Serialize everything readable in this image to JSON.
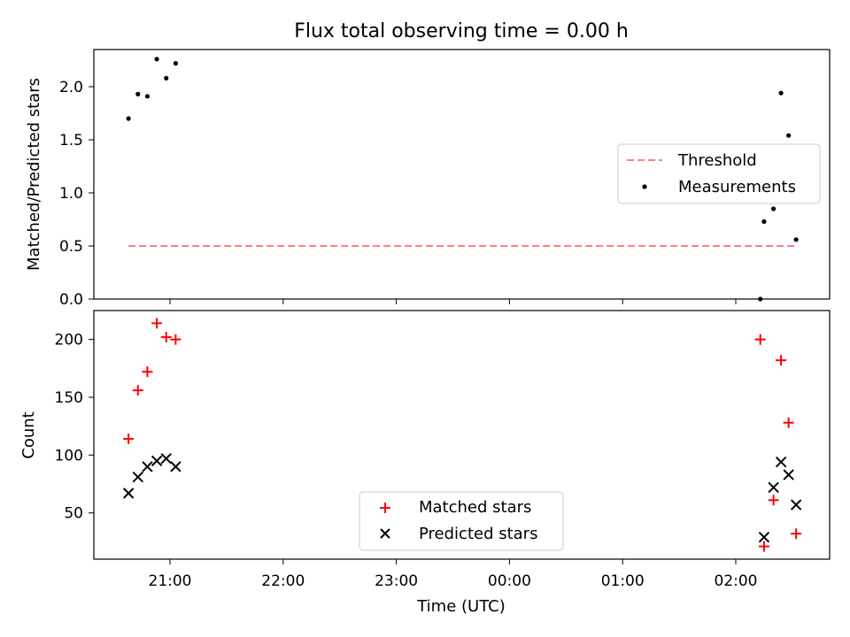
{
  "chart_data": [
    {
      "type": "scatter",
      "title": "Flux total observing time = 0.00 h",
      "ylabel": "Matched/Predicted stars",
      "xlabel": "",
      "ylim": [
        0,
        2.35
      ],
      "yticks": [
        "0.0",
        "0.5",
        "1.0",
        "1.5",
        "2.0"
      ],
      "ytick_values": [
        0,
        0.5,
        1.0,
        1.5,
        2.0
      ],
      "legend_position": "center-right",
      "series": [
        {
          "name": "Threshold",
          "style": "dashed-line",
          "color": "#ff7f7f",
          "x": [
            "20:38",
            "02:32"
          ],
          "y": [
            0.5,
            0.5
          ]
        },
        {
          "name": "Measurements",
          "style": "dot",
          "color": "#000000",
          "x": [
            "20:38",
            "20:43",
            "20:48",
            "20:53",
            "20:58",
            "21:03",
            "02:13",
            "02:15",
            "02:20",
            "02:24",
            "02:28",
            "02:32"
          ],
          "y": [
            1.7,
            1.93,
            1.91,
            2.26,
            2.08,
            2.22,
            0.0,
            0.73,
            0.85,
            1.94,
            1.54,
            0.56
          ]
        }
      ]
    },
    {
      "type": "scatter",
      "xlabel": "Time (UTC)",
      "ylabel": "Count",
      "ylim": [
        10,
        225
      ],
      "yticks": [
        "50",
        "100",
        "150",
        "200"
      ],
      "ytick_values": [
        50,
        100,
        150,
        200
      ],
      "xticks": [
        "21:00",
        "22:00",
        "23:00",
        "00:00",
        "01:00",
        "02:00"
      ],
      "legend_position": "lower-center",
      "series": [
        {
          "name": "Matched stars",
          "marker": "+",
          "color": "#ff0000",
          "x": [
            "20:38",
            "20:43",
            "20:48",
            "20:53",
            "20:58",
            "21:03",
            "02:13",
            "02:15",
            "02:20",
            "02:24",
            "02:28",
            "02:32"
          ],
          "y": [
            114,
            156,
            172,
            214,
            202,
            200,
            200,
            21,
            61,
            182,
            128,
            32
          ]
        },
        {
          "name": "Predicted stars",
          "marker": "x",
          "color": "#000000",
          "x": [
            "20:38",
            "20:43",
            "20:48",
            "20:53",
            "20:58",
            "21:03",
            "02:15",
            "02:20",
            "02:24",
            "02:28",
            "02:32"
          ],
          "y": [
            67,
            81,
            90,
            95,
            97,
            90,
            29,
            72,
            94,
            83,
            57
          ]
        }
      ]
    }
  ]
}
